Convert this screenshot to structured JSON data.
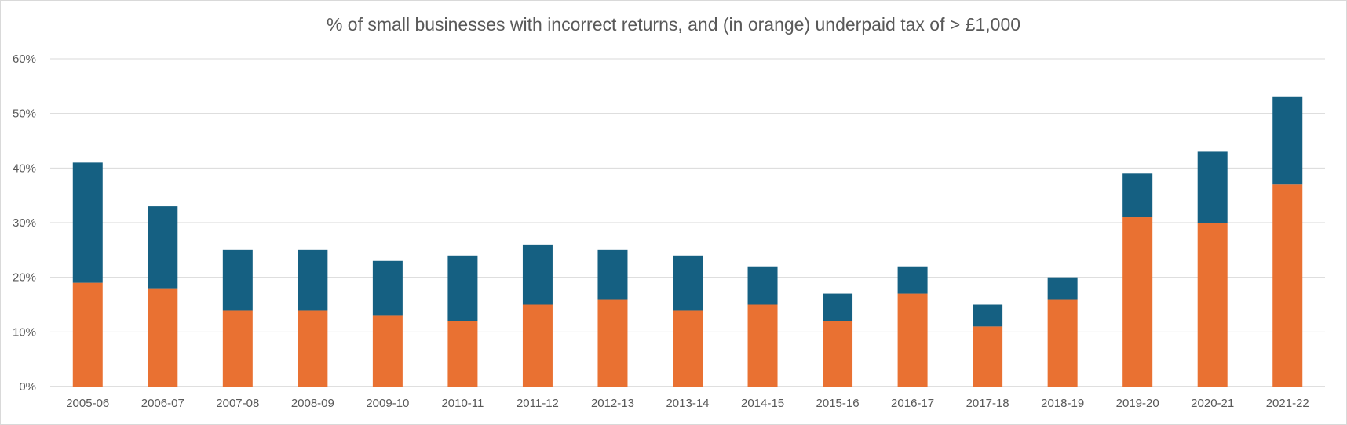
{
  "chart_data": {
    "type": "bar",
    "stacked": true,
    "title": "% of small businesses with incorrect returns, and (in orange) underpaid tax of > £1,000",
    "xlabel": "",
    "ylabel": "",
    "ylim": [
      0,
      60
    ],
    "yticks": [
      "0%",
      "10%",
      "20%",
      "30%",
      "40%",
      "50%",
      "60%"
    ],
    "grid": true,
    "legend": "none",
    "categories": [
      "2005-06",
      "2006-07",
      "2007-08",
      "2008-09",
      "2009-10",
      "2010-11",
      "2011-12",
      "2012-13",
      "2013-14",
      "2014-15",
      "2015-16",
      "2016-17",
      "2017-18",
      "2018-19",
      "2019-20",
      "2020-21",
      "2021-22"
    ],
    "series": [
      {
        "color": "#E97132",
        "values": [
          19,
          18,
          14,
          14,
          13,
          12,
          15,
          16,
          14,
          15,
          12,
          17,
          11,
          16,
          31,
          30,
          37
        ]
      },
      {
        "color": "#156082",
        "values": [
          22,
          15,
          11,
          11,
          10,
          12,
          11,
          9,
          10,
          7,
          5,
          5,
          4,
          4,
          8,
          13,
          16
        ]
      }
    ],
    "totals": [
      41,
      33,
      25,
      25,
      23,
      24,
      26,
      25,
      24,
      22,
      17,
      22,
      15,
      20,
      39,
      43,
      53
    ]
  }
}
